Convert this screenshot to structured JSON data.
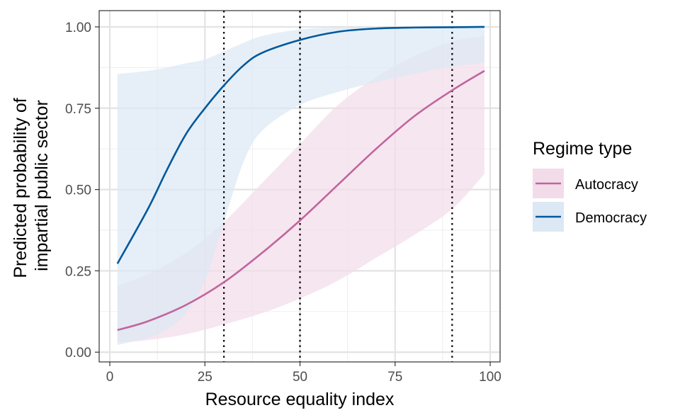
{
  "chart_data": {
    "type": "line",
    "xlabel": "Resource equality index",
    "ylabel_lines": [
      "Predicted probability of",
      "impartial public sector"
    ],
    "xlim": [
      -2.8,
      102.6
    ],
    "ylim": [
      -0.03,
      1.05
    ],
    "x_ticks": [
      0,
      25,
      50,
      75,
      100
    ],
    "x_tick_labels": [
      "0",
      "25",
      "50",
      "75",
      "100"
    ],
    "y_ticks": [
      0,
      0.25,
      0.5,
      0.75,
      1.0
    ],
    "y_tick_labels": [
      "0.00",
      "0.25",
      "0.50",
      "0.75",
      "1.00"
    ],
    "vlines": [
      30,
      50,
      90
    ],
    "grid": true,
    "legend": {
      "title": "Regime type",
      "position": "right",
      "entries": [
        "Autocracy",
        "Democracy"
      ]
    },
    "series": [
      {
        "name": "Autocracy",
        "color": "#c0659d",
        "band_color": "#f2dcea",
        "x": [
          2,
          10,
          20,
          30,
          40,
          50,
          60,
          70,
          80,
          90,
          98.5
        ],
        "y": [
          0.068,
          0.095,
          0.145,
          0.215,
          0.305,
          0.405,
          0.515,
          0.625,
          0.725,
          0.805,
          0.865
        ],
        "lower": [
          0.03,
          0.037,
          0.055,
          0.085,
          0.12,
          0.165,
          0.22,
          0.29,
          0.36,
          0.44,
          0.548
        ],
        "upper": [
          0.205,
          0.24,
          0.305,
          0.4,
          0.52,
          0.64,
          0.76,
          0.845,
          0.91,
          0.955,
          0.972
        ]
      },
      {
        "name": "Democracy",
        "color": "#00589d",
        "band_color": "#dce8f3",
        "x": [
          2,
          10,
          15,
          20,
          25,
          30,
          35,
          40,
          50,
          60,
          70,
          80,
          90,
          98.5
        ],
        "y": [
          0.272,
          0.44,
          0.56,
          0.67,
          0.75,
          0.82,
          0.88,
          0.92,
          0.96,
          0.985,
          0.995,
          0.998,
          0.999,
          1.0
        ],
        "lower": [
          0.022,
          0.044,
          0.07,
          0.12,
          0.22,
          0.4,
          0.58,
          0.68,
          0.76,
          0.8,
          0.83,
          0.855,
          0.878,
          0.89
        ],
        "upper": [
          0.855,
          0.865,
          0.875,
          0.888,
          0.9,
          0.925,
          0.95,
          0.972,
          0.992,
          0.998,
          0.999,
          1.0,
          1.0,
          1.0
        ]
      }
    ]
  }
}
